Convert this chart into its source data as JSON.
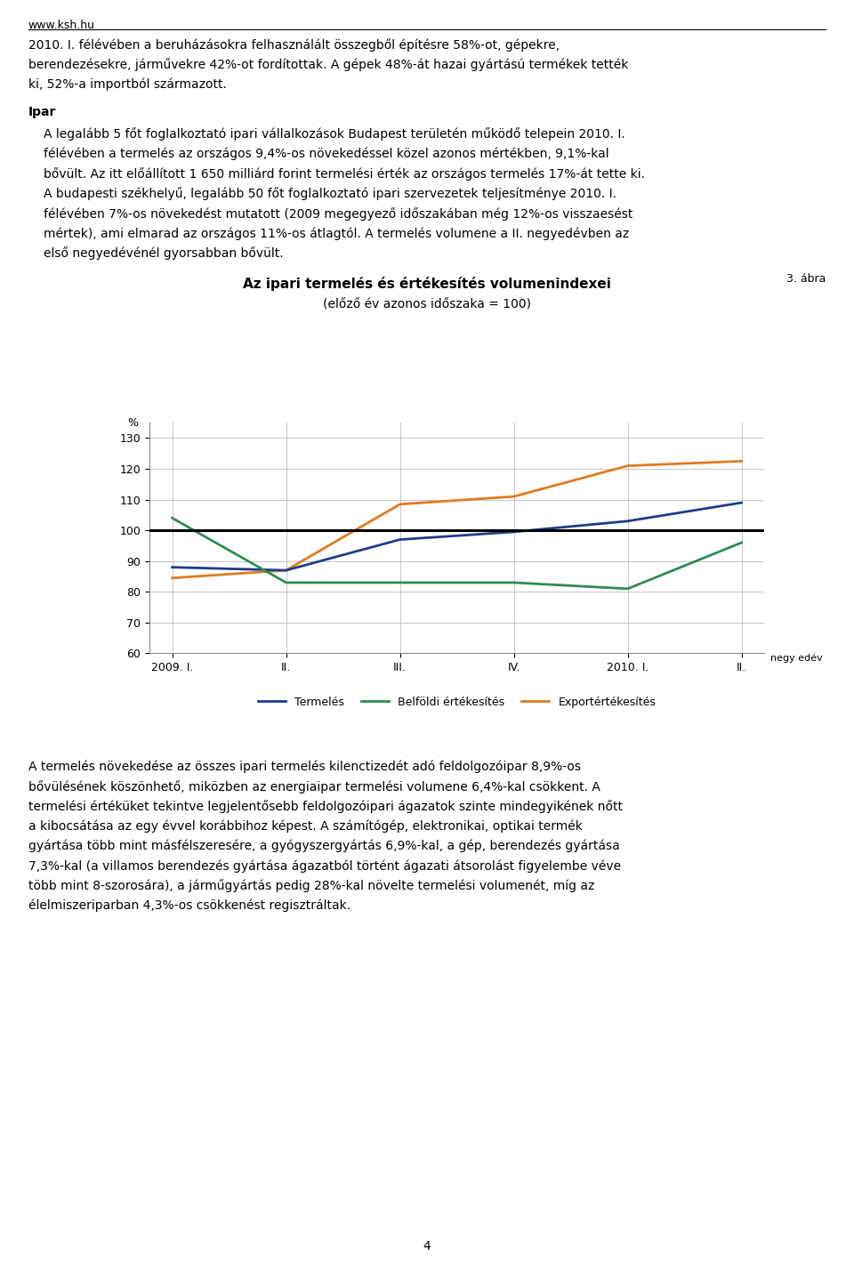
{
  "title_line1": "Az ipari termelés és értékesítés volumenindexei",
  "title_line2": "(előző év azonos időszaka = 100)",
  "ylabel": "%",
  "ylim": [
    60,
    135
  ],
  "yticks": [
    60,
    70,
    80,
    90,
    100,
    110,
    120,
    130
  ],
  "x_values": [
    0,
    1,
    2,
    3,
    4,
    5
  ],
  "termeles": [
    88.0,
    87.0,
    97.0,
    99.5,
    103.0,
    109.0
  ],
  "belfoldi": [
    104.0,
    83.0,
    83.0,
    83.0,
    81.0,
    96.0
  ],
  "export": [
    84.5,
    87.0,
    108.5,
    111.0,
    121.0,
    122.5
  ],
  "termeles_color": "#1f3c88",
  "belfoldi_color": "#2e8b57",
  "export_color": "#e07b20",
  "reference_line_y": 100,
  "legend_labels": [
    "Termelés",
    "Belföldi értékesítés",
    "Exportértékesítés"
  ],
  "background_color": "#ffffff",
  "grid_color": "#bbbbbb",
  "title_fontsize": 11,
  "tick_fontsize": 9,
  "body_fontsize": 10,
  "header": "www.ksh.hu",
  "abra_label": "3. ábra",
  "para1_lines": [
    "2010. I. félévében a beruházásokra felhasználált összegből építésre 58%-ot, gépekre,",
    "berendezésekre, járművekre 42%-ot fordítottak. A gépek 48%-át hazai gyártású termékek tették",
    "ki, 52%-a importból származott."
  ],
  "ipar_label": "Ipar",
  "para2_lines": [
    "A legalább 5 főt foglalkoztató ipari vállalkozások Budapest területén működő telepein 2010. I.",
    "félévében a termelés az országos 9,4%-os növekedéssel közel azonos mértékben, 9,1%-kal",
    "bővült. Az itt előállított 1 650 milliárd forint termelési érték az országos termelés 17%-át tette ki.",
    "A budapesti székhelyű, legalább 50 főt foglalkoztató ipari szervezetek teljesítménye 2010. I.",
    "félévében 7%-os növekedést mutatott (2009 megegyező időszakában még 12%-os visszaesést",
    "mértek), ami elmarad az országos 11%-os átlagtól. A termelés volumene a II. negyedévben az",
    "első negyedévénél gyorsabban bővült."
  ],
  "para3_lines": [
    "A termelés növekedése az összes ipari termelés kilenctizedét adó feldolgozóipar 8,9%-os",
    "bővülésének köszönhető, miközben az energiaipar termelési volumene 6,4%-kal csökkent. A",
    "termelési értéküket tekintve legjelentősebb feldolgozóipari ágazatok szinte mindegyikének nőtt",
    "a kibocsátása az egy évvel korábbihoz képest. A számítógép, elektronikai, optikai termék",
    "gyártása több mint másfélszeresére, a gyógyszergyártás 6,9%-kal, a gép, berendezés gyártása",
    "7,3%-kal (a villamos berendezés gyártása ágazatból történt ágazati átsorolást figyelembe véve",
    "több mint 8-szorosára), a járműgyártás pedig 28%-kal növelte termelési volumenét, míg az",
    "élelmiszeriparban 4,3%-os csökkenést regisztráltak."
  ],
  "page_number": "4",
  "xtick_labels": [
    "2009. I.",
    "II.",
    "III.",
    "IV.",
    "2010. I.",
    "II."
  ],
  "negyedev_label": "negy edév"
}
